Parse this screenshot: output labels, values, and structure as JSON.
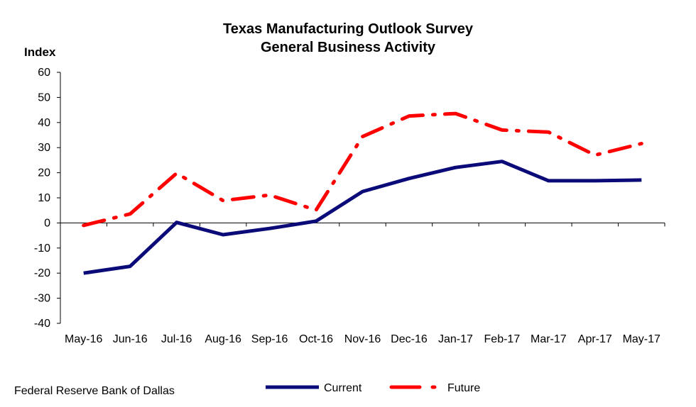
{
  "chart_data": {
    "type": "line",
    "title": "Texas Manufacturing Outlook Survey",
    "subtitle": "General Business Activity",
    "ylabel": "Index",
    "xlabel": "",
    "categories": [
      "May-16",
      "Jun-16",
      "Jul-16",
      "Aug-16",
      "Sep-16",
      "Oct-16",
      "Nov-16",
      "Dec-16",
      "Jan-17",
      "Feb-17",
      "Mar-17",
      "Apr-17",
      "May-17"
    ],
    "ylim": [
      -40,
      60
    ],
    "yticks": [
      "60",
      "50",
      "40",
      "30",
      "20",
      "10",
      "0",
      "-10",
      "-20",
      "-30",
      "-40"
    ],
    "grid": false,
    "legend_position": "bottom",
    "series": [
      {
        "name": "Current",
        "color": "#0a0a78",
        "style": "solid",
        "values": [
          -20.0,
          -17.3,
          0.2,
          -4.7,
          -2.2,
          0.7,
          12.5,
          17.7,
          22.1,
          24.5,
          16.8,
          16.8,
          17.1
        ]
      },
      {
        "name": "Future",
        "color": "#ff0000",
        "style": "dash-dot",
        "values": [
          -1.0,
          3.6,
          19.8,
          8.9,
          11.1,
          5.1,
          34.4,
          42.6,
          43.6,
          37.0,
          36.2,
          27.0,
          31.6
        ]
      }
    ]
  },
  "source": "Federal Reserve Bank of Dallas"
}
